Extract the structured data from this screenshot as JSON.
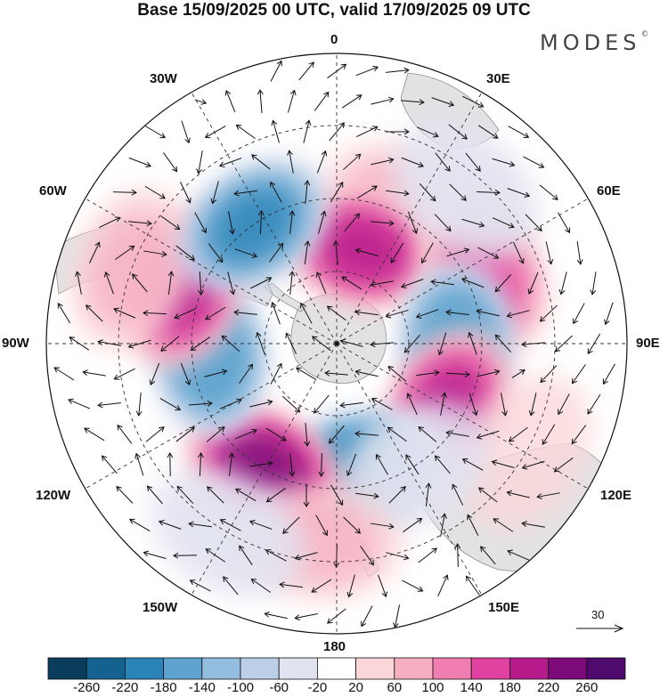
{
  "title": "Base 15/09/2025 00 UTC, valid 17/09/2025 09 UTC",
  "brand": {
    "name": "MODES",
    "mark": "©"
  },
  "longitudes": [
    "0",
    "30E",
    "60E",
    "90E",
    "120E",
    "150E",
    "180",
    "150W",
    "120W",
    "90W",
    "60W",
    "30W"
  ],
  "vector_reference": {
    "label": "30",
    "icon": "arrow-right-icon"
  },
  "colorbar": {
    "labels": [
      "-260",
      "-220",
      "-180",
      "-140",
      "-100",
      "-60",
      "-20",
      "20",
      "60",
      "100",
      "140",
      "180",
      "220",
      "260"
    ],
    "colors": [
      "#0a3d5c",
      "#13628f",
      "#2a84b8",
      "#5ea3cd",
      "#93bee0",
      "#bccfe7",
      "#e2e3f0",
      "#ffffff",
      "#fbd6d9",
      "#f6aec1",
      "#f07eb0",
      "#e0439f",
      "#b5198a",
      "#7c0a78",
      "#4f0a6d"
    ]
  },
  "anomalies": [
    {
      "lon": 25,
      "lat": -48,
      "value": 60
    },
    {
      "lon": 15,
      "lat": -63,
      "value": 180
    },
    {
      "lon": 65,
      "lat": -45,
      "value": 140
    },
    {
      "lon": 40,
      "lat": -35,
      "value": -60
    },
    {
      "lon": 90,
      "lat": -57,
      "value": -180
    },
    {
      "lon": 120,
      "lat": -55,
      "value": 180
    },
    {
      "lon": 120,
      "lat": -30,
      "value": 20
    },
    {
      "lon": 170,
      "lat": -55,
      "value": -220
    },
    {
      "lon": 148,
      "lat": -50,
      "value": -60
    },
    {
      "lon": -150,
      "lat": -50,
      "value": 220
    },
    {
      "lon": -175,
      "lat": -35,
      "value": 60
    },
    {
      "lon": -95,
      "lat": -55,
      "value": -180
    },
    {
      "lon": -70,
      "lat": -45,
      "value": 180
    },
    {
      "lon": -70,
      "lat": -30,
      "value": 60
    },
    {
      "lon": -35,
      "lat": -50,
      "value": -200
    },
    {
      "lon": -150,
      "lat": -30,
      "value": -60
    }
  ]
}
